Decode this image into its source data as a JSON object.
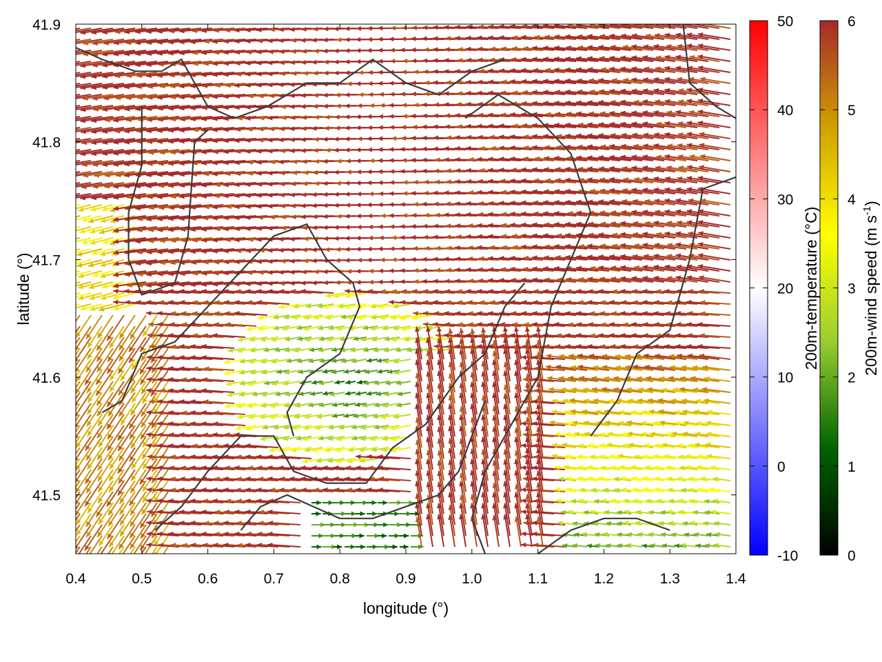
{
  "chart_data": {
    "type": "vector-field",
    "xlabel": "longitude (°)",
    "ylabel": "latitude (°)",
    "xlim": [
      0.4,
      1.4
    ],
    "ylim": [
      41.45,
      41.9
    ],
    "xticks": [
      "0.4",
      "0.5",
      "0.6",
      "0.7",
      "0.8",
      "0.9",
      "1.0",
      "1.1",
      "1.2",
      "1.3",
      "1.4"
    ],
    "yticks": [
      "41.5",
      "41.6",
      "41.7",
      "41.8",
      "41.9"
    ],
    "colorbar_temperature": {
      "label": "200m-temperature (°C)",
      "range": [
        -10,
        50
      ],
      "ticks": [
        "50",
        "40",
        "30",
        "20",
        "10",
        "0",
        "-10"
      ],
      "colors": [
        "#0000ff",
        "#ffffff",
        "#ff0000"
      ]
    },
    "colorbar_wind": {
      "label_main": "200m-wind speed (m s",
      "label_sup": "-1",
      "label_end": ")",
      "range": [
        0,
        6
      ],
      "ticks": [
        "6",
        "5",
        "4",
        "3",
        "2",
        "1",
        "0"
      ],
      "colors": [
        "#000000",
        "#006400",
        "#9acd32",
        "#ffff00",
        "#d2a000",
        "#a52a2a"
      ]
    },
    "wind_field": {
      "description_regions": [
        {
          "region": "north",
          "lon": [
            0.4,
            1.4
          ],
          "lat": [
            41.7,
            41.9
          ],
          "direction": "westward",
          "speed": 6
        },
        {
          "region": "center",
          "lon": [
            0.7,
            0.95
          ],
          "lat": [
            41.55,
            41.65
          ],
          "direction": "westward",
          "speed": 3
        },
        {
          "region": "south-center",
          "lon": [
            0.75,
            0.9
          ],
          "lat": [
            41.45,
            41.5
          ],
          "direction": "eastward",
          "speed": 1.5
        },
        {
          "region": "south-east",
          "lon": [
            1.15,
            1.4
          ],
          "lat": [
            41.45,
            41.6
          ],
          "direction": "westward",
          "speed": 2.5
        },
        {
          "region": "central-south",
          "lon": [
            0.9,
            1.1
          ],
          "lat": [
            41.45,
            41.6
          ],
          "direction": "northward",
          "speed": 6
        }
      ]
    },
    "coastline_paths": [
      [
        [
          0.4,
          41.88
        ],
        [
          0.44,
          41.87
        ],
        [
          0.49,
          41.86
        ],
        [
          0.53,
          41.86
        ],
        [
          0.56,
          41.87
        ],
        [
          0.6,
          41.83
        ],
        [
          0.64,
          41.82
        ],
        [
          0.69,
          41.83
        ],
        [
          0.75,
          41.85
        ],
        [
          0.8,
          41.85
        ],
        [
          0.85,
          41.87
        ],
        [
          0.9,
          41.85
        ],
        [
          0.95,
          41.84
        ],
        [
          1.0,
          41.86
        ],
        [
          1.05,
          41.87
        ]
      ],
      [
        [
          0.5,
          41.83
        ],
        [
          0.5,
          41.78
        ],
        [
          0.48,
          41.74
        ],
        [
          0.48,
          41.7
        ],
        [
          0.5,
          41.67
        ],
        [
          0.55,
          41.68
        ],
        [
          0.57,
          41.72
        ],
        [
          0.58,
          41.8
        ],
        [
          0.6,
          41.81
        ]
      ],
      [
        [
          0.44,
          41.57
        ],
        [
          0.47,
          41.58
        ],
        [
          0.5,
          41.62
        ],
        [
          0.55,
          41.63
        ],
        [
          0.6,
          41.66
        ],
        [
          0.65,
          41.69
        ],
        [
          0.7,
          41.72
        ],
        [
          0.75,
          41.73
        ],
        [
          0.78,
          41.7
        ],
        [
          0.82,
          41.68
        ],
        [
          0.83,
          41.66
        ],
        [
          0.8,
          41.62
        ],
        [
          0.75,
          41.6
        ],
        [
          0.72,
          41.57
        ],
        [
          0.73,
          41.55
        ]
      ],
      [
        [
          0.52,
          41.47
        ],
        [
          0.56,
          41.49
        ],
        [
          0.6,
          41.52
        ],
        [
          0.65,
          41.55
        ],
        [
          0.7,
          41.55
        ],
        [
          0.73,
          41.52
        ],
        [
          0.78,
          41.51
        ],
        [
          0.84,
          41.51
        ],
        [
          0.88,
          41.54
        ],
        [
          0.93,
          41.56
        ],
        [
          0.98,
          41.6
        ],
        [
          1.02,
          41.62
        ],
        [
          1.05,
          41.66
        ],
        [
          1.08,
          41.68
        ]
      ],
      [
        [
          0.65,
          41.47
        ],
        [
          0.68,
          41.49
        ],
        [
          0.72,
          41.5
        ],
        [
          0.76,
          41.49
        ],
        [
          0.8,
          41.48
        ],
        [
          0.85,
          41.48
        ],
        [
          0.9,
          41.49
        ],
        [
          0.95,
          41.5
        ],
        [
          0.98,
          41.52
        ],
        [
          1.0,
          41.55
        ],
        [
          1.02,
          41.58
        ]
      ],
      [
        [
          0.99,
          41.82
        ],
        [
          1.04,
          41.84
        ],
        [
          1.1,
          41.82
        ],
        [
          1.15,
          41.79
        ],
        [
          1.18,
          41.74
        ],
        [
          1.15,
          41.7
        ],
        [
          1.12,
          41.66
        ],
        [
          1.1,
          41.6
        ],
        [
          1.06,
          41.56
        ],
        [
          1.02,
          41.52
        ],
        [
          1.0,
          41.48
        ],
        [
          1.02,
          41.45
        ]
      ],
      [
        [
          1.1,
          41.45
        ],
        [
          1.15,
          41.47
        ],
        [
          1.2,
          41.48
        ],
        [
          1.25,
          41.48
        ],
        [
          1.3,
          41.47
        ]
      ],
      [
        [
          1.18,
          41.55
        ],
        [
          1.22,
          41.58
        ],
        [
          1.25,
          41.62
        ],
        [
          1.3,
          41.64
        ],
        [
          1.33,
          41.7
        ],
        [
          1.35,
          41.76
        ],
        [
          1.4,
          41.77
        ]
      ],
      [
        [
          1.32,
          41.9
        ],
        [
          1.33,
          41.85
        ],
        [
          1.37,
          41.83
        ],
        [
          1.4,
          41.82
        ]
      ]
    ]
  }
}
